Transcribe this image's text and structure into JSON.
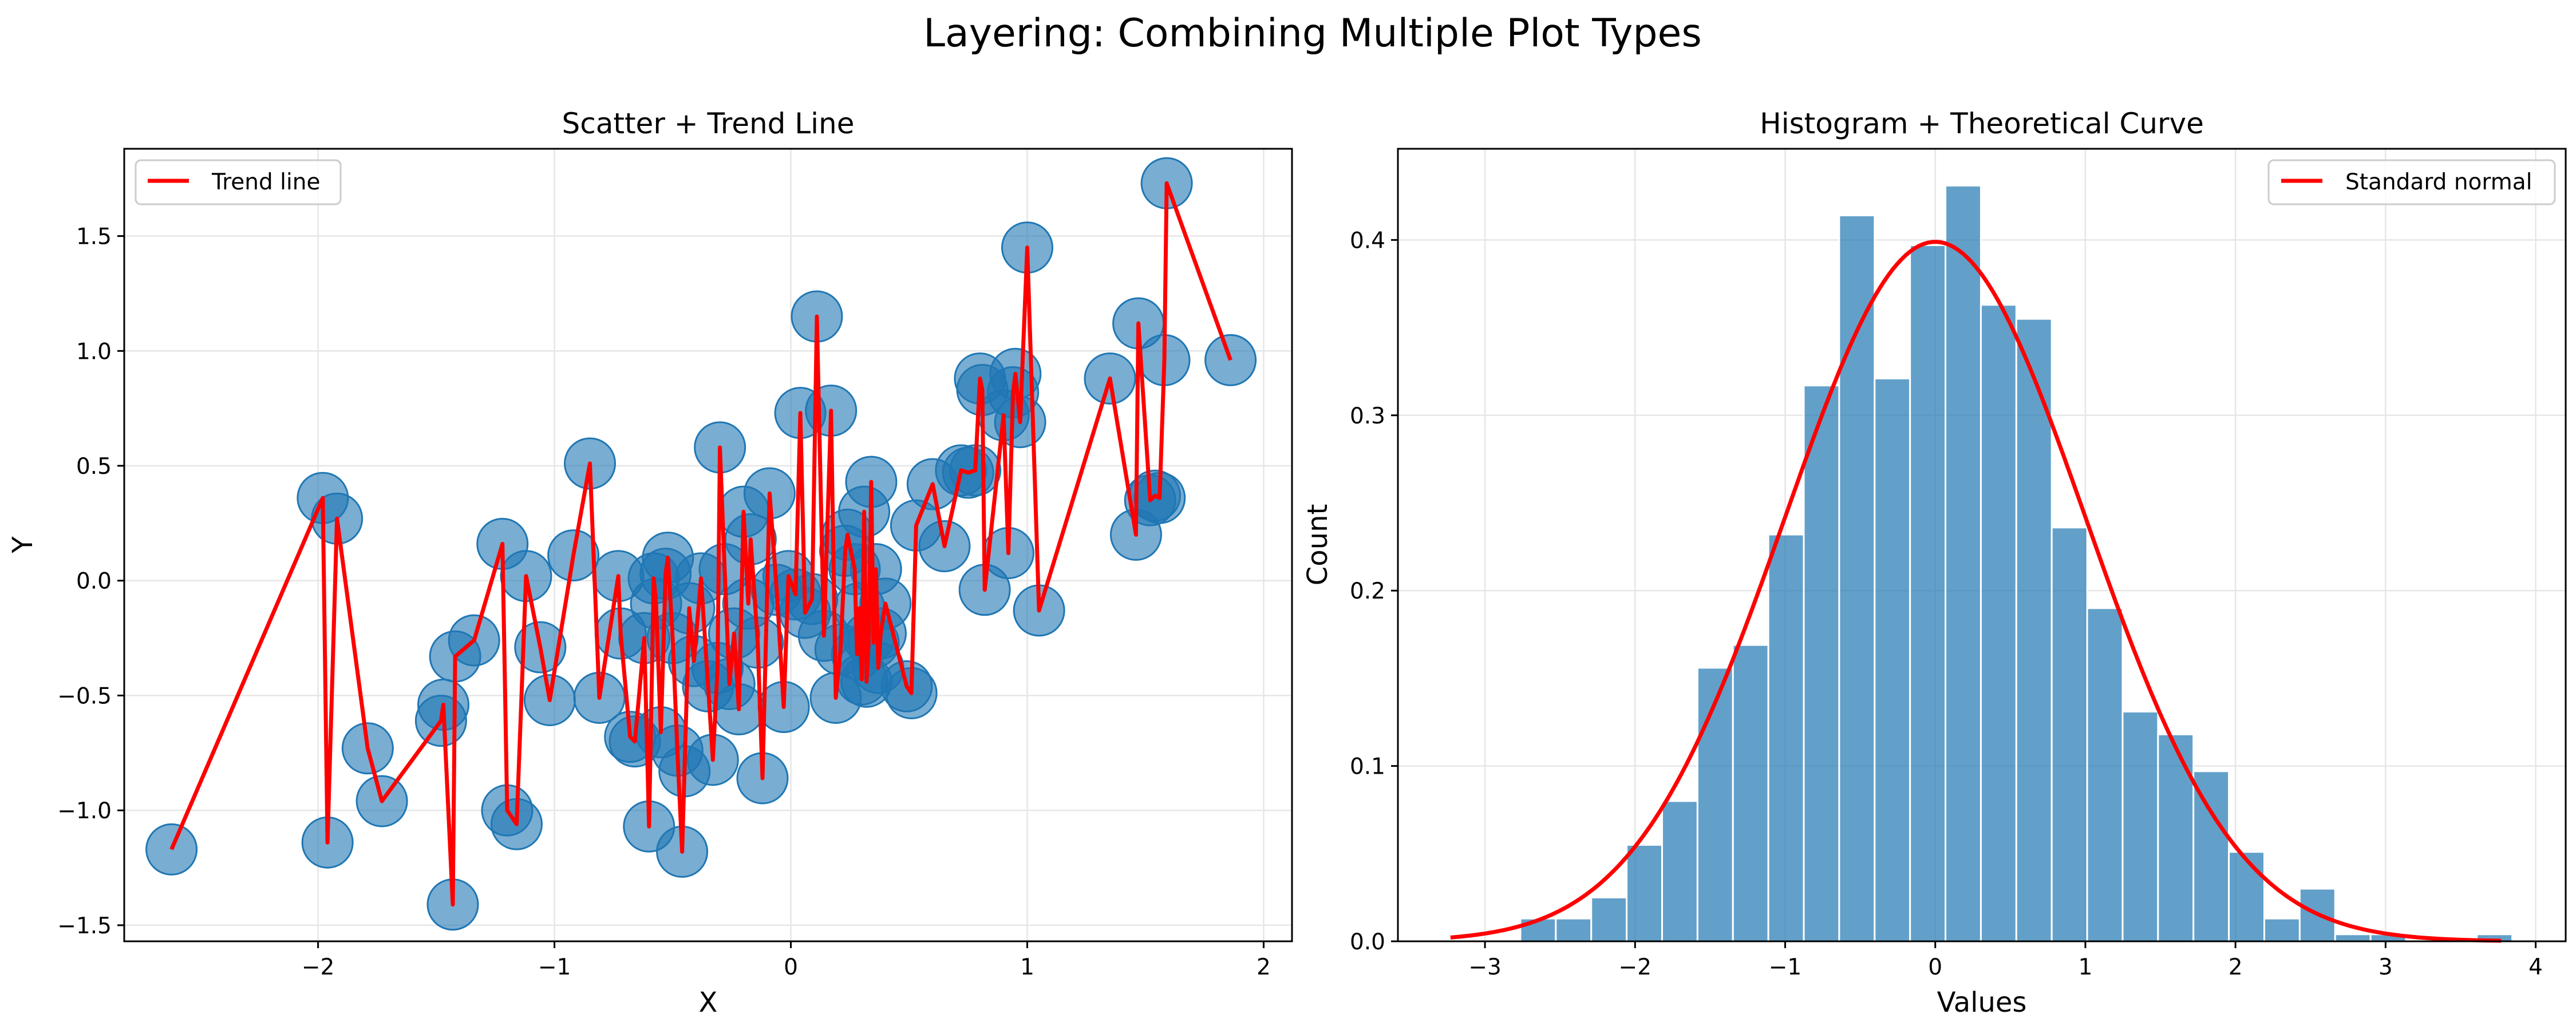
{
  "figure": {
    "suptitle": "Layering: Combining Multiple Plot Types"
  },
  "colors": {
    "scatter_fill": "#1f77b4",
    "trend_line": "#ff0000",
    "histogram_fill": "#1f77b4",
    "theory_curve": "#ff0000",
    "grid": "#e6e6e6"
  },
  "chart_data": [
    {
      "type": "scatter",
      "title": "Scatter + Trend Line",
      "xlabel": "X",
      "ylabel": "Y",
      "xlim": [
        -2.82,
        2.12
      ],
      "ylim": [
        -1.57,
        1.88
      ],
      "xticks": [
        -2,
        -1,
        0,
        1,
        2
      ],
      "xtick_labels": [
        "−2",
        "−1",
        "0",
        "1",
        "2"
      ],
      "yticks": [
        -1.5,
        -1.0,
        -0.5,
        0.0,
        0.5,
        1.0,
        1.5
      ],
      "ytick_labels": [
        "−1.5",
        "−1.0",
        "−0.5",
        "0.0",
        "0.5",
        "1.0",
        "1.5"
      ],
      "grid": true,
      "legend_position": "top-left",
      "legend": [
        "Trend line"
      ],
      "points": [
        [
          -2.62,
          -1.17
        ],
        [
          -1.98,
          0.36
        ],
        [
          -1.96,
          -1.14
        ],
        [
          -1.92,
          0.27
        ],
        [
          -1.79,
          -0.73
        ],
        [
          -1.73,
          -0.96
        ],
        [
          -1.48,
          -0.61
        ],
        [
          -1.47,
          -0.54
        ],
        [
          -1.43,
          -1.41
        ],
        [
          -1.42,
          -0.33
        ],
        [
          -1.34,
          -0.26
        ],
        [
          -1.22,
          0.16
        ],
        [
          -1.2,
          -1.0
        ],
        [
          -1.16,
          -1.06
        ],
        [
          -1.12,
          0.02
        ],
        [
          -1.06,
          -0.29
        ],
        [
          -1.02,
          -0.52
        ],
        [
          -0.92,
          0.11
        ],
        [
          -0.85,
          0.51
        ],
        [
          -0.81,
          -0.51
        ],
        [
          -0.73,
          0.02
        ],
        [
          -0.72,
          -0.23
        ],
        [
          -0.68,
          -0.68
        ],
        [
          -0.66,
          -0.7
        ],
        [
          -0.62,
          -0.25
        ],
        [
          -0.6,
          -1.07
        ],
        [
          -0.58,
          0.01
        ],
        [
          -0.57,
          -0.1
        ],
        [
          -0.55,
          -0.66
        ],
        [
          -0.53,
          0.03
        ],
        [
          -0.52,
          0.1
        ],
        [
          -0.5,
          -0.25
        ],
        [
          -0.48,
          -0.74
        ],
        [
          -0.46,
          -1.18
        ],
        [
          -0.45,
          -0.83
        ],
        [
          -0.43,
          -0.12
        ],
        [
          -0.41,
          -0.35
        ],
        [
          -0.38,
          0.01
        ],
        [
          -0.35,
          -0.46
        ],
        [
          -0.33,
          -0.78
        ],
        [
          -0.31,
          -0.38
        ],
        [
          -0.3,
          0.58
        ],
        [
          -0.28,
          0.05
        ],
        [
          -0.26,
          -0.45
        ],
        [
          -0.24,
          -0.23
        ],
        [
          -0.22,
          -0.56
        ],
        [
          -0.2,
          0.3
        ],
        [
          -0.18,
          -0.1
        ],
        [
          -0.17,
          0.18
        ],
        [
          -0.14,
          -0.27
        ],
        [
          -0.12,
          -0.86
        ],
        [
          -0.09,
          0.38
        ],
        [
          -0.06,
          -0.04
        ],
        [
          -0.03,
          -0.55
        ],
        [
          -0.01,
          0.02
        ],
        [
          0.02,
          -0.06
        ],
        [
          0.04,
          0.73
        ],
        [
          0.06,
          -0.14
        ],
        [
          0.09,
          -0.08
        ],
        [
          0.11,
          1.15
        ],
        [
          0.14,
          -0.24
        ],
        [
          0.17,
          0.74
        ],
        [
          0.19,
          -0.51
        ],
        [
          0.21,
          -0.3
        ],
        [
          0.23,
          0.13
        ],
        [
          0.24,
          0.2
        ],
        [
          0.27,
          0.05
        ],
        [
          0.28,
          -0.32
        ],
        [
          0.29,
          -0.12
        ],
        [
          0.3,
          -0.43
        ],
        [
          0.31,
          0.3
        ],
        [
          0.32,
          -0.44
        ],
        [
          0.33,
          -0.25
        ],
        [
          0.34,
          0.43
        ],
        [
          0.35,
          -0.27
        ],
        [
          0.36,
          0.05
        ],
        [
          0.37,
          -0.38
        ],
        [
          0.38,
          -0.23
        ],
        [
          0.4,
          -0.1
        ],
        [
          0.49,
          -0.46
        ],
        [
          0.51,
          -0.49
        ],
        [
          0.53,
          0.24
        ],
        [
          0.6,
          0.42
        ],
        [
          0.65,
          0.15
        ],
        [
          0.72,
          0.48
        ],
        [
          0.75,
          0.47
        ],
        [
          0.78,
          0.48
        ],
        [
          0.8,
          0.88
        ],
        [
          0.81,
          0.83
        ],
        [
          0.82,
          -0.04
        ],
        [
          0.9,
          0.72
        ],
        [
          0.92,
          0.12
        ],
        [
          0.94,
          0.82
        ],
        [
          0.95,
          0.9
        ],
        [
          0.97,
          0.69
        ],
        [
          1.0,
          1.45
        ],
        [
          1.05,
          -0.13
        ],
        [
          1.35,
          0.88
        ],
        [
          1.46,
          0.2
        ],
        [
          1.47,
          1.12
        ],
        [
          1.52,
          0.35
        ],
        [
          1.54,
          0.37
        ],
        [
          1.56,
          0.36
        ],
        [
          1.58,
          0.96
        ],
        [
          1.59,
          1.73
        ],
        [
          1.86,
          0.96
        ]
      ],
      "series": [
        {
          "name": "Trend line",
          "kind": "line",
          "source": "points (connected in x order)"
        }
      ]
    },
    {
      "type": "bar",
      "subtype": "histogram",
      "title": "Histogram + Theoretical Curve",
      "xlabel": "Values",
      "ylabel": "Count",
      "xlim": [
        -3.58,
        4.2
      ],
      "ylim": [
        0,
        0.452
      ],
      "xticks": [
        -3,
        -2,
        -1,
        0,
        1,
        2,
        3,
        4
      ],
      "xtick_labels": [
        "−3",
        "−2",
        "−1",
        "0",
        "1",
        "2",
        "3",
        "4"
      ],
      "yticks": [
        0.0,
        0.1,
        0.2,
        0.3,
        0.4
      ],
      "ytick_labels": [
        "0.0",
        "0.1",
        "0.2",
        "0.3",
        "0.4"
      ],
      "grid": true,
      "legend_position": "top-right",
      "legend": [
        "Standard normal"
      ],
      "bin_start": -2.764,
      "bin_width": 0.236,
      "values": [
        0.013,
        0.013,
        0.025,
        0.055,
        0.08,
        0.156,
        0.169,
        0.232,
        0.317,
        0.414,
        0.321,
        0.397,
        0.431,
        0.363,
        0.355,
        0.236,
        0.19,
        0.131,
        0.118,
        0.097,
        0.051,
        0.013,
        0.03,
        0.004,
        0.004,
        0.0,
        0.0,
        0.004
      ],
      "series": [
        {
          "name": "Standard normal",
          "kind": "line",
          "function": "standard normal pdf",
          "x_range": [
            -3.23,
            3.77
          ]
        }
      ]
    }
  ]
}
